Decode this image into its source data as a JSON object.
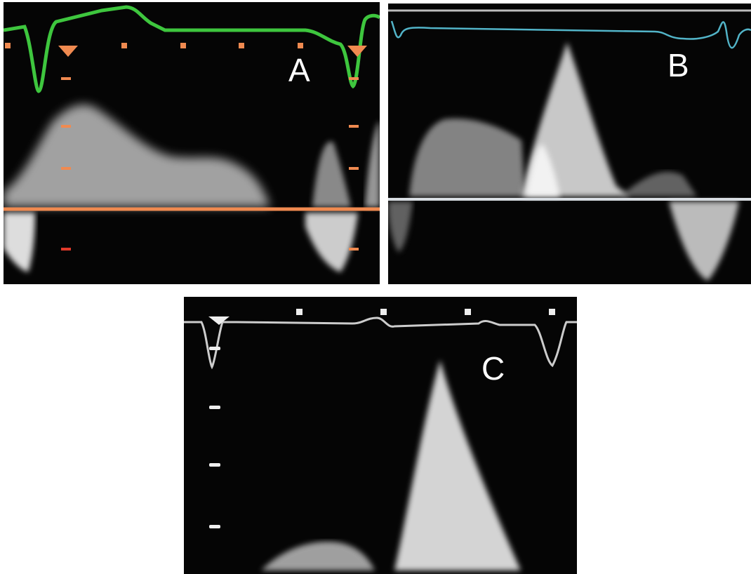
{
  "panels": [
    {
      "label": "A"
    },
    {
      "label": "B"
    },
    {
      "label": "C"
    }
  ]
}
